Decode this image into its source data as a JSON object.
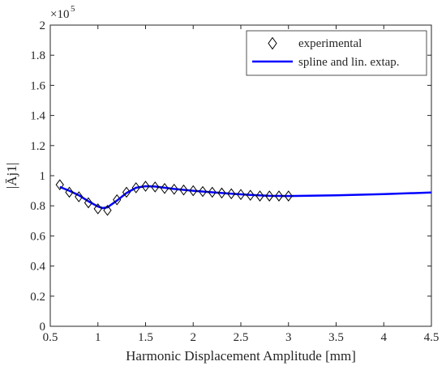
{
  "chart_data": {
    "type": "line",
    "xlabel": "Harmonic Displacement Amplitude [mm]",
    "ylabel": "|Āj1|",
    "xlim": [
      0.5,
      4.5
    ],
    "ylim": [
      0,
      2
    ],
    "xticks": [
      "0.5",
      "1",
      "1.5",
      "2",
      "2.5",
      "3",
      "3.5",
      "4",
      "4.5"
    ],
    "yticks": [
      "0",
      "0.2",
      "0.4",
      "0.6",
      "0.8",
      "1",
      "1.2",
      "1.4",
      "1.6",
      "1.8",
      "2"
    ],
    "y_exponent_label": "×10",
    "y_exponent_power": "5",
    "grid": false,
    "legend_position": "top-right",
    "series": [
      {
        "name": "experimental",
        "style": "markers",
        "marker": "diamond",
        "color": "#000000",
        "x": [
          0.6,
          0.7,
          0.8,
          0.9,
          1.0,
          1.1,
          1.2,
          1.3,
          1.4,
          1.5,
          1.6,
          1.7,
          1.8,
          1.9,
          2.0,
          2.1,
          2.2,
          2.3,
          2.4,
          2.5,
          2.6,
          2.7,
          2.8,
          2.9,
          3.0
        ],
        "y": [
          0.94,
          0.89,
          0.86,
          0.82,
          0.78,
          0.77,
          0.84,
          0.89,
          0.92,
          0.93,
          0.925,
          0.915,
          0.91,
          0.905,
          0.9,
          0.895,
          0.89,
          0.885,
          0.88,
          0.875,
          0.87,
          0.865,
          0.865,
          0.865,
          0.865
        ]
      },
      {
        "name": "spline and lin. extap.",
        "style": "line",
        "color": "#0000ff",
        "x": [
          0.6,
          0.7,
          0.8,
          0.9,
          1.0,
          1.05,
          1.1,
          1.2,
          1.3,
          1.4,
          1.5,
          1.6,
          1.7,
          1.8,
          2.0,
          2.2,
          2.4,
          2.6,
          2.8,
          3.0,
          3.5,
          4.0,
          4.5
        ],
        "y": [
          0.925,
          0.9,
          0.87,
          0.83,
          0.795,
          0.785,
          0.79,
          0.835,
          0.885,
          0.92,
          0.93,
          0.928,
          0.92,
          0.912,
          0.9,
          0.89,
          0.88,
          0.872,
          0.866,
          0.865,
          0.87,
          0.878,
          0.888
        ]
      }
    ]
  }
}
